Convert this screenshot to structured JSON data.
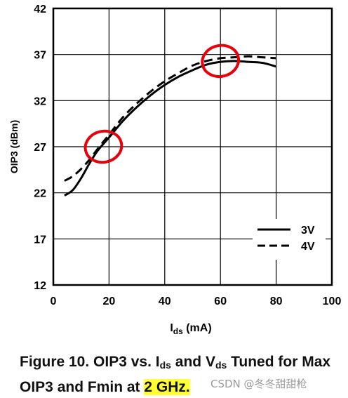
{
  "chart_data": {
    "type": "line",
    "title": "",
    "xlabel_main": "I",
    "xlabel_sub": "ds",
    "xlabel_unit": " (mA)",
    "ylabel": "OIP3 (dBm)",
    "xlim": [
      0,
      100
    ],
    "ylim": [
      12,
      42
    ],
    "xticks": [
      0,
      20,
      40,
      60,
      80,
      100
    ],
    "yticks": [
      12,
      17,
      22,
      27,
      32,
      37,
      42
    ],
    "grid": true,
    "legend_position": "bottom-right",
    "series": [
      {
        "name": "3V",
        "style": "solid",
        "color": "#000000",
        "x": [
          4,
          7,
          10,
          13,
          16,
          20,
          25,
          30,
          35,
          40,
          45,
          50,
          55,
          60,
          65,
          70,
          75,
          80
        ],
        "y": [
          21.7,
          22.3,
          23.6,
          25.2,
          26.6,
          28.0,
          29.8,
          31.3,
          32.6,
          33.7,
          34.6,
          35.3,
          35.9,
          36.2,
          36.3,
          36.2,
          36.1,
          35.7
        ]
      },
      {
        "name": "4V",
        "style": "dashed",
        "color": "#000000",
        "x": [
          4,
          7,
          10,
          13,
          16,
          20,
          25,
          30,
          35,
          40,
          45,
          50,
          55,
          60,
          65,
          70,
          75,
          80
        ],
        "y": [
          23.3,
          23.8,
          24.6,
          25.6,
          26.8,
          28.3,
          30.2,
          31.7,
          33.0,
          34.1,
          35.0,
          35.8,
          36.3,
          36.6,
          36.7,
          36.8,
          36.7,
          36.6
        ]
      }
    ],
    "annotations": [
      {
        "shape": "circle",
        "color": "#e8000b",
        "x": 18,
        "y": 27
      },
      {
        "shape": "circle",
        "color": "#e8000b",
        "x": 60,
        "y": 36.3
      }
    ]
  },
  "caption": {
    "part1": "Figure 10.  OIP3 vs. I",
    "sub1": "ds",
    "part2": " and V",
    "sub2": "ds",
    "part3": " Tuned for Max OIP3 and Fmin at ",
    "highlight": "2 GHz."
  },
  "watermark": "CSDN @冬冬甜甜枪"
}
